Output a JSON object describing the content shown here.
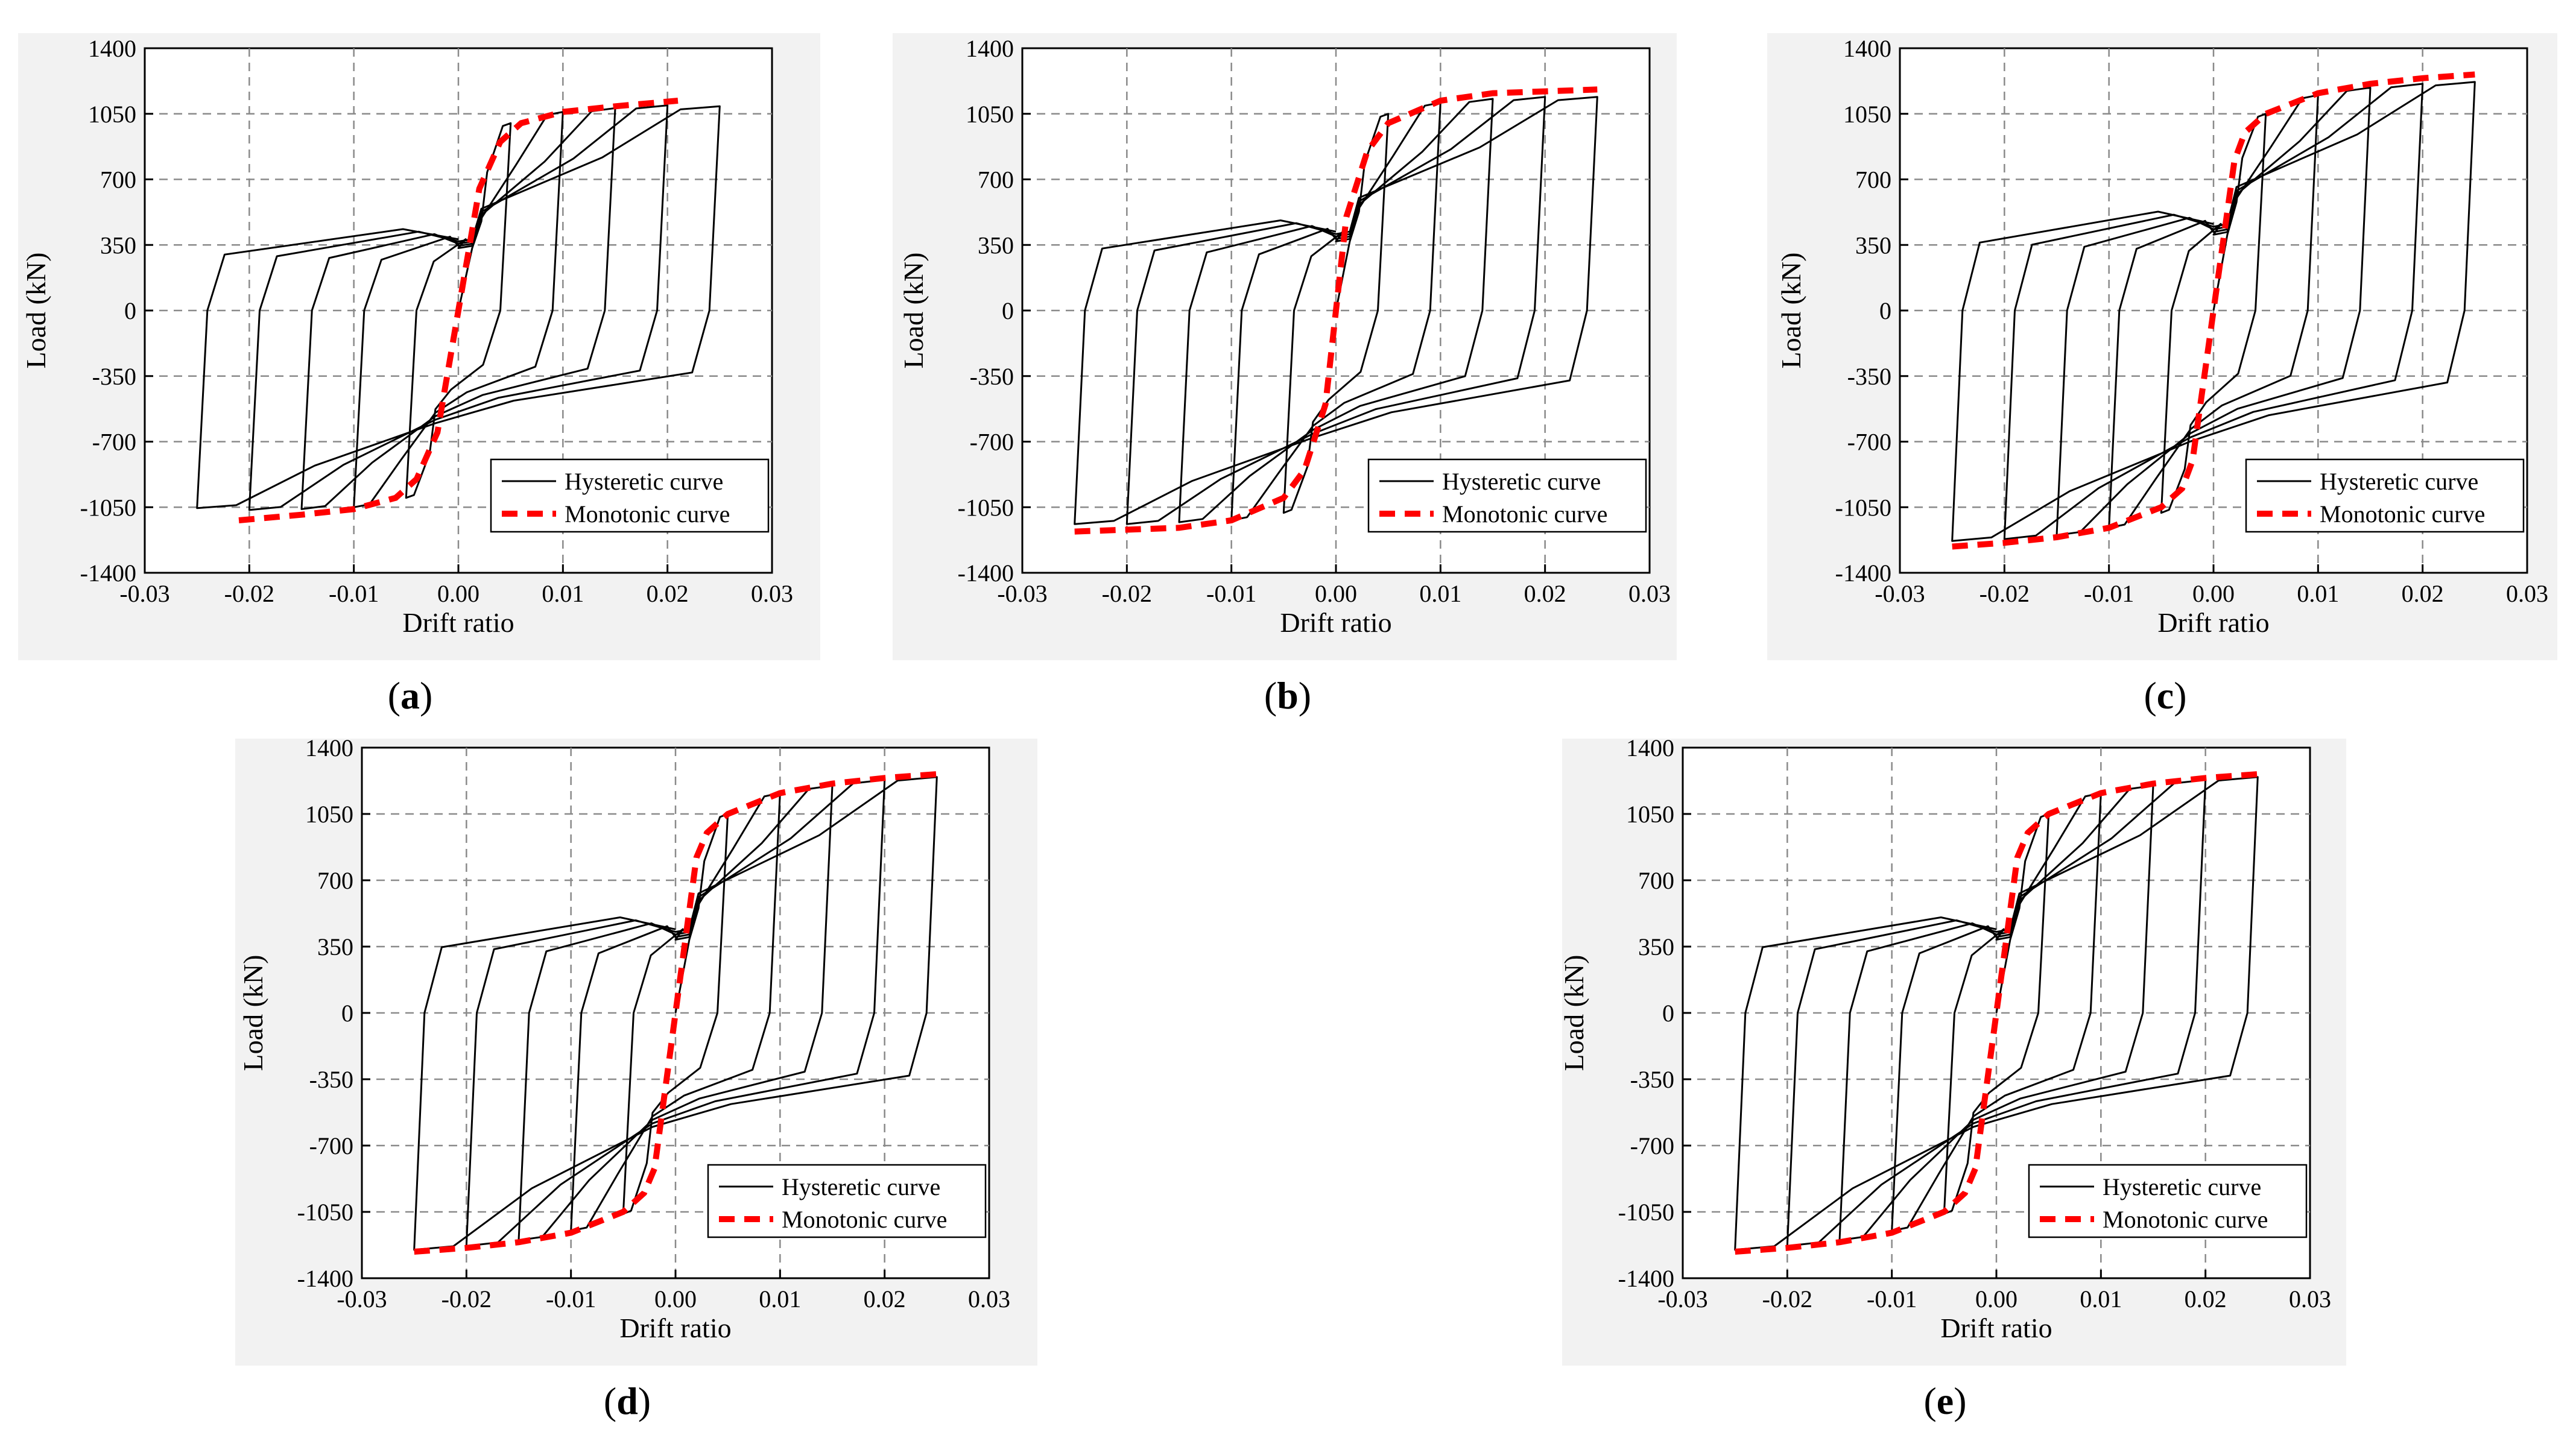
{
  "figure": {
    "shared": {
      "xlabel": "Drift ratio",
      "ylabel": "Load (kN)",
      "xlim": [
        -0.03,
        0.03
      ],
      "ylim": [
        -1400,
        1400
      ],
      "xticks": [
        -0.03,
        -0.02,
        -0.01,
        0.0,
        0.01,
        0.02,
        0.03
      ],
      "xtick_labels": [
        "-0.03",
        "-0.02",
        "-0.01",
        "0.00",
        "0.01",
        "0.02",
        "0.03"
      ],
      "yticks": [
        1400,
        1050,
        700,
        350,
        0,
        -350,
        -700,
        -1050,
        -1400
      ],
      "ytick_labels": [
        "1400",
        "1050",
        "700",
        "350",
        "0",
        "-350",
        "-700",
        "-1050",
        "-1400"
      ],
      "legend": [
        "Hysteretic curve",
        "Monotonic curve"
      ],
      "legend_placement": "bottom-right",
      "colors": {
        "hysteretic": "#000000",
        "monotonic": "#ff0000",
        "grid": "#8a8a8a"
      }
    }
  },
  "chart_data": [
    {
      "panel": "a",
      "label_open": "(",
      "label_letter": "a",
      "label_close": ")",
      "type": "line",
      "title": "",
      "xlabel": "Drift ratio",
      "ylabel": "Load (kN)",
      "xlim": [
        -0.03,
        0.03
      ],
      "ylim": [
        -1400,
        1400
      ],
      "grid": true,
      "legend": [
        "Hysteretic curve",
        "Monotonic curve"
      ],
      "drift_levels": [
        0.005,
        0.01,
        0.015,
        0.02,
        0.025
      ],
      "peak_pos": [
        1000,
        1060,
        1080,
        1095,
        1090
      ],
      "peak_neg": [
        -1000,
        -1050,
        -1060,
        -1065,
        -1055
      ],
      "yield_pos": 560,
      "yield_neg": -620,
      "series": [
        {
          "name": "Hysteretic curve",
          "style": "solid"
        },
        {
          "name": "Monotonic curve",
          "style": "dashed",
          "x": [
            -0.021,
            -0.015,
            -0.01,
            -0.006,
            -0.004,
            -0.002,
            0.0,
            0.002,
            0.004,
            0.006,
            0.01,
            0.015,
            0.021
          ],
          "y": [
            -1120,
            -1090,
            -1060,
            -1000,
            -900,
            -650,
            0,
            650,
            900,
            1000,
            1060,
            1090,
            1120
          ]
        }
      ]
    },
    {
      "panel": "b",
      "label_open": "(",
      "label_letter": "b",
      "label_close": ")",
      "type": "line",
      "title": "",
      "xlabel": "Drift ratio",
      "ylabel": "Load (kN)",
      "xlim": [
        -0.03,
        0.03
      ],
      "ylim": [
        -1400,
        1400
      ],
      "grid": true,
      "legend": [
        "Hysteretic curve",
        "Monotonic curve"
      ],
      "drift_levels": [
        0.005,
        0.01,
        0.015,
        0.02,
        0.025
      ],
      "peak_pos": [
        1050,
        1110,
        1130,
        1140,
        1140
      ],
      "peak_neg": [
        -1080,
        -1120,
        -1130,
        -1140,
        -1140
      ],
      "yield_pos": 620,
      "yield_neg": -700,
      "series": [
        {
          "name": "Hysteretic curve",
          "style": "solid"
        },
        {
          "name": "Monotonic curve",
          "style": "dashed",
          "x": [
            -0.025,
            -0.015,
            -0.01,
            -0.005,
            -0.003,
            -0.001,
            0.0,
            0.001,
            0.003,
            0.005,
            0.01,
            0.015,
            0.025
          ],
          "y": [
            -1180,
            -1160,
            -1120,
            -1000,
            -850,
            -500,
            0,
            500,
            850,
            1000,
            1120,
            1160,
            1180
          ]
        }
      ]
    },
    {
      "panel": "c",
      "label_open": "(",
      "label_letter": "c",
      "label_close": ")",
      "type": "line",
      "title": "",
      "xlabel": "Drift ratio",
      "ylabel": "Load (kN)",
      "xlim": [
        -0.03,
        0.03
      ],
      "ylim": [
        -1400,
        1400
      ],
      "grid": true,
      "legend": [
        "Hysteretic curve",
        "Monotonic curve"
      ],
      "drift_levels": [
        0.005,
        0.01,
        0.015,
        0.02,
        0.025
      ],
      "peak_pos": [
        1050,
        1150,
        1190,
        1210,
        1220
      ],
      "peak_neg": [
        -1080,
        -1160,
        -1200,
        -1220,
        -1230
      ],
      "yield_pos": 680,
      "yield_neg": -720,
      "series": [
        {
          "name": "Hysteretic curve",
          "style": "solid"
        },
        {
          "name": "Monotonic curve",
          "style": "dashed",
          "x": [
            -0.025,
            -0.02,
            -0.015,
            -0.01,
            -0.005,
            -0.003,
            -0.002,
            0.0,
            0.002,
            0.003,
            0.005,
            0.01,
            0.015,
            0.02,
            0.025
          ],
          "y": [
            -1260,
            -1240,
            -1210,
            -1160,
            -1050,
            -950,
            -800,
            0,
            800,
            950,
            1050,
            1160,
            1210,
            1240,
            1260
          ]
        }
      ]
    },
    {
      "panel": "d",
      "label_open": "(",
      "label_letter": "d",
      "label_close": ")",
      "type": "line",
      "title": "",
      "xlabel": "Drift ratio",
      "ylabel": "Load (kN)",
      "xlim": [
        -0.03,
        0.03
      ],
      "ylim": [
        -1400,
        1400
      ],
      "grid": true,
      "legend": [
        "Hysteretic curve",
        "Monotonic curve"
      ],
      "drift_levels": [
        0.005,
        0.01,
        0.015,
        0.02,
        0.025
      ],
      "peak_pos": [
        1050,
        1160,
        1200,
        1230,
        1245
      ],
      "peak_neg": [
        -1060,
        -1150,
        -1200,
        -1230,
        -1250
      ],
      "yield_pos": 650,
      "yield_neg": -620,
      "series": [
        {
          "name": "Hysteretic curve",
          "style": "solid"
        },
        {
          "name": "Monotonic curve",
          "style": "dashed",
          "x": [
            -0.025,
            -0.02,
            -0.015,
            -0.01,
            -0.005,
            -0.003,
            -0.002,
            0.0,
            0.002,
            0.003,
            0.005,
            0.01,
            0.015,
            0.02,
            0.025
          ],
          "y": [
            -1260,
            -1240,
            -1210,
            -1160,
            -1050,
            -950,
            -820,
            0,
            820,
            950,
            1050,
            1160,
            1210,
            1240,
            1260
          ]
        }
      ]
    },
    {
      "panel": "e",
      "label_open": "(",
      "label_letter": "e",
      "label_close": ")",
      "type": "line",
      "title": "",
      "xlabel": "Drift ratio",
      "ylabel": "Load (kN)",
      "xlim": [
        -0.03,
        0.03
      ],
      "ylim": [
        -1400,
        1400
      ],
      "grid": true,
      "legend": [
        "Hysteretic curve",
        "Monotonic curve"
      ],
      "drift_levels": [
        0.005,
        0.01,
        0.015,
        0.02,
        0.025
      ],
      "peak_pos": [
        1050,
        1160,
        1200,
        1230,
        1245
      ],
      "peak_neg": [
        -1060,
        -1150,
        -1200,
        -1230,
        -1250
      ],
      "yield_pos": 650,
      "yield_neg": -620,
      "series": [
        {
          "name": "Hysteretic curve",
          "style": "solid"
        },
        {
          "name": "Monotonic curve",
          "style": "dashed",
          "x": [
            -0.025,
            -0.02,
            -0.015,
            -0.01,
            -0.005,
            -0.003,
            -0.002,
            0.0,
            0.002,
            0.003,
            0.005,
            0.01,
            0.015,
            0.02,
            0.025
          ],
          "y": [
            -1260,
            -1240,
            -1210,
            -1160,
            -1050,
            -950,
            -820,
            0,
            820,
            950,
            1050,
            1160,
            1210,
            1240,
            1260
          ]
        }
      ]
    }
  ]
}
